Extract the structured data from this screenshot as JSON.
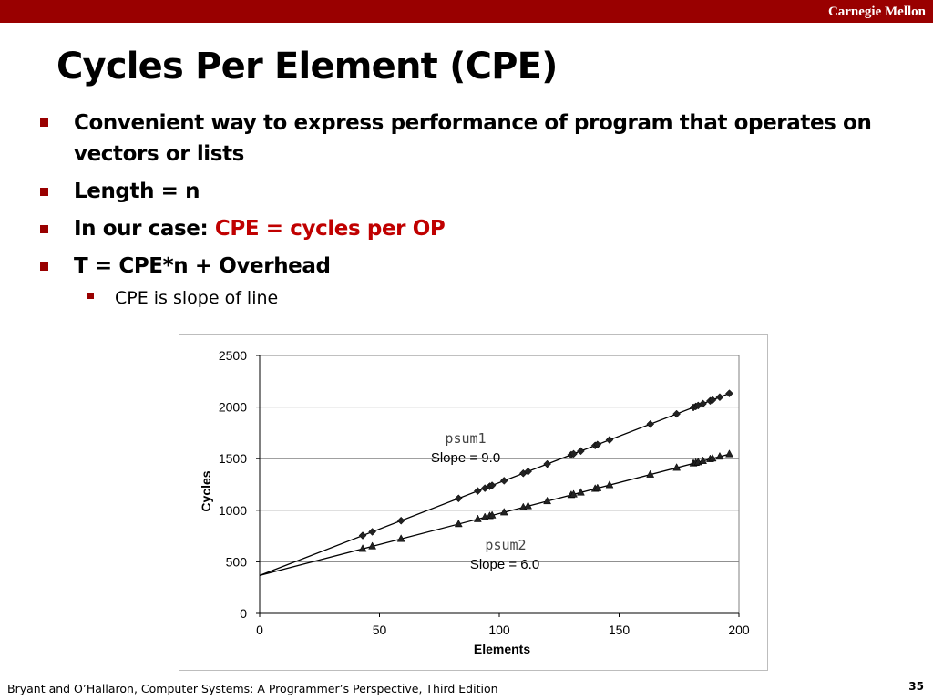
{
  "header": {
    "brand": "Carnegie Mellon"
  },
  "slide": {
    "title": "Cycles Per Element (CPE)",
    "bullets": [
      {
        "line1": "Convenient way to express performance of program that operates on",
        "line2": "vectors or lists"
      },
      {
        "text": "Length = n"
      },
      {
        "prefix": "In our case: ",
        "highlight": "CPE = cycles per OP"
      },
      {
        "text": "T = CPE*n + Overhead"
      }
    ],
    "sub_bullets": [
      "CPE is slope of line"
    ]
  },
  "chart_data": {
    "type": "scatter",
    "xlabel": "Elements",
    "ylabel": "Cycles",
    "xlim": [
      0,
      200
    ],
    "ylim": [
      0,
      2500
    ],
    "x_ticks": [
      0,
      50,
      100,
      150,
      200
    ],
    "y_ticks": [
      0,
      500,
      1000,
      1500,
      2000,
      2500
    ],
    "grid": "horizontal",
    "series": [
      {
        "name": "psum1",
        "marker": "diamond",
        "fit": {
          "slope": 9.0,
          "intercept": 368,
          "x_range": [
            0,
            196
          ]
        },
        "annotation": "Slope = 9.0",
        "x": [
          43,
          47,
          59,
          83,
          91,
          94,
          96,
          97,
          102,
          110,
          112,
          120,
          130,
          131,
          134,
          140,
          141,
          146,
          163,
          174,
          181,
          182,
          183,
          185,
          188,
          189,
          192,
          196
        ],
        "y": [
          755,
          791,
          899,
          1115,
          1187,
          1214,
          1232,
          1241,
          1286,
          1358,
          1376,
          1448,
          1538,
          1547,
          1574,
          1628,
          1637,
          1682,
          1835,
          1934,
          1997,
          2006,
          2015,
          2033,
          2060,
          2069,
          2096,
          2132
        ]
      },
      {
        "name": "psum2",
        "marker": "triangle",
        "fit": {
          "slope": 6.0,
          "intercept": 368,
          "x_range": [
            0,
            196
          ]
        },
        "annotation": "Slope = 6.0",
        "x": [
          43,
          47,
          59,
          83,
          91,
          94,
          96,
          97,
          102,
          110,
          112,
          120,
          130,
          131,
          134,
          140,
          141,
          146,
          163,
          174,
          181,
          182,
          183,
          185,
          188,
          189,
          192,
          196
        ],
        "y": [
          626,
          650,
          722,
          866,
          914,
          932,
          944,
          950,
          980,
          1028,
          1040,
          1088,
          1148,
          1154,
          1172,
          1208,
          1214,
          1244,
          1346,
          1412,
          1454,
          1460,
          1466,
          1478,
          1496,
          1502,
          1520,
          1544
        ]
      }
    ]
  },
  "footer": {
    "citation": "Bryant and O’Hallaron, Computer Systems: A Programmer’s Perspective, Third Edition",
    "page_number": "35"
  },
  "colors": {
    "brand": "#990000",
    "highlight": "#c00000",
    "grid": "#808080"
  }
}
